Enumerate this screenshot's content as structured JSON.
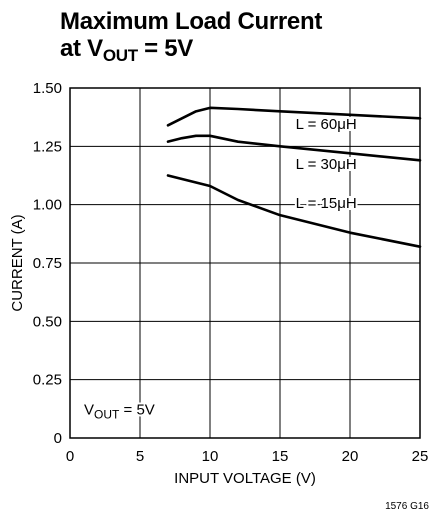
{
  "chart_data": {
    "type": "line",
    "title_line1": "Maximum Load Current",
    "title_line2_prefix": "at V",
    "title_line2_sub": "OUT",
    "title_line2_suffix": " = 5V",
    "xlabel": "INPUT VOLTAGE (V)",
    "ylabel": "CURRENT (A)",
    "xlim": [
      0,
      25
    ],
    "ylim": [
      0,
      1.5
    ],
    "x_ticks": [
      "0",
      "5",
      "10",
      "15",
      "20",
      "25"
    ],
    "y_ticks": [
      "0",
      "0.25",
      "0.50",
      "0.75",
      "1.00",
      "1.25",
      "1.50"
    ],
    "grid": true,
    "series": [
      {
        "name": "L = 60μH",
        "x": [
          7,
          8,
          9,
          10,
          12,
          15,
          20,
          25
        ],
        "y": [
          1.34,
          1.37,
          1.4,
          1.415,
          1.41,
          1.4,
          1.385,
          1.37
        ]
      },
      {
        "name": "L = 30μH",
        "x": [
          7,
          8,
          9,
          10,
          12,
          15,
          20,
          25
        ],
        "y": [
          1.27,
          1.285,
          1.295,
          1.295,
          1.27,
          1.25,
          1.22,
          1.19
        ]
      },
      {
        "name": "L = 15μH",
        "x": [
          7,
          8,
          9,
          10,
          12,
          15,
          20,
          25
        ],
        "y": [
          1.125,
          1.11,
          1.095,
          1.08,
          1.02,
          0.955,
          0.88,
          0.82
        ]
      }
    ],
    "annotation_prefix": "V",
    "annotation_sub": "OUT",
    "annotation_suffix": " = 5V"
  },
  "figure_code": "1576 G16"
}
